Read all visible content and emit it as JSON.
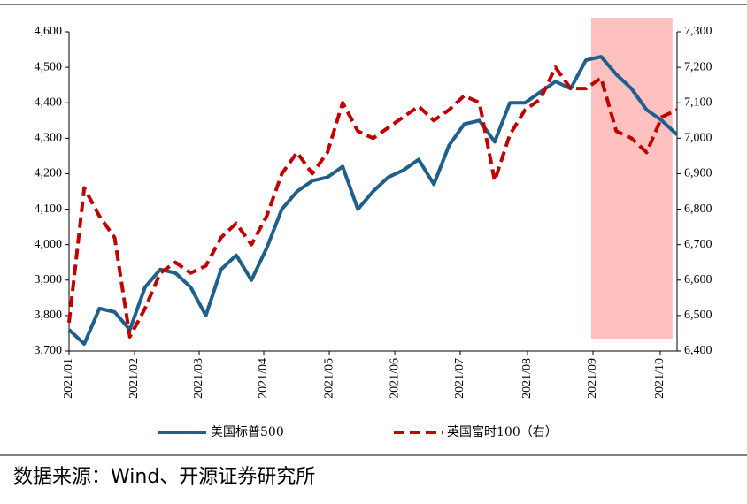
{
  "chart_data": {
    "type": "line",
    "x": [
      0,
      1,
      2,
      3,
      4,
      5,
      6,
      7,
      8,
      9,
      10,
      11,
      12,
      13,
      14,
      15,
      16,
      17,
      18,
      19,
      20,
      21,
      22,
      23,
      24,
      25,
      26,
      27,
      28,
      29,
      30,
      31,
      32,
      33,
      34,
      35,
      36,
      37,
      38,
      39,
      40
    ],
    "xlim": [
      0,
      40
    ],
    "xticks": [
      {
        "value": 0,
        "label": "2021/01"
      },
      {
        "value": 4.31,
        "label": "2021/02"
      },
      {
        "value": 8.56,
        "label": "2021/03"
      },
      {
        "value": 12.81,
        "label": "2021/04"
      },
      {
        "value": 17.12,
        "label": "2021/05"
      },
      {
        "value": 21.43,
        "label": "2021/06"
      },
      {
        "value": 25.73,
        "label": "2021/07"
      },
      {
        "value": 30.16,
        "label": "2021/08"
      },
      {
        "value": 34.47,
        "label": "2021/09"
      },
      {
        "value": 38.89,
        "label": "2021/10"
      }
    ],
    "ylim": [
      3700,
      4600
    ],
    "yticks": [
      {
        "value": 3700,
        "label": "3,700"
      },
      {
        "value": 3800,
        "label": "3,800"
      },
      {
        "value": 3900,
        "label": "3,900"
      },
      {
        "value": 4000,
        "label": "4,000"
      },
      {
        "value": 4100,
        "label": "4,100"
      },
      {
        "value": 4200,
        "label": "4,200"
      },
      {
        "value": 4300,
        "label": "4,300"
      },
      {
        "value": 4400,
        "label": "4,400"
      },
      {
        "value": 4500,
        "label": "4,500"
      },
      {
        "value": 4600,
        "label": "4,600"
      }
    ],
    "y2lim": [
      6400,
      7300
    ],
    "y2ticks": [
      {
        "value": 6400,
        "label": "6,400"
      },
      {
        "value": 6500,
        "label": "6,500"
      },
      {
        "value": 6600,
        "label": "6,600"
      },
      {
        "value": 6700,
        "label": "6,700"
      },
      {
        "value": 6800,
        "label": "6,800"
      },
      {
        "value": 6900,
        "label": "6,900"
      },
      {
        "value": 7000,
        "label": "7,000"
      },
      {
        "value": 7100,
        "label": "7,100"
      },
      {
        "value": 7200,
        "label": "7,200"
      },
      {
        "value": 7300,
        "label": "7,300"
      }
    ],
    "shade": {
      "x": [
        34.35,
        39.7
      ],
      "y": [
        3735,
        4640
      ],
      "color": "#ffc0c0"
    },
    "series": [
      {
        "name": "美国标普500",
        "color": "#1f5f8b",
        "dashed": false,
        "values": [
          3760,
          3720,
          3820,
          3810,
          3760,
          3880,
          3930,
          3920,
          3880,
          3800,
          3930,
          3970,
          3900,
          3990,
          4100,
          4150,
          4180,
          4190,
          4220,
          4100,
          4150,
          4190,
          4210,
          4240,
          4170,
          4280,
          4340,
          4350,
          4290,
          4400,
          4400,
          4430,
          4460,
          4440,
          4520,
          4530,
          4480,
          4440,
          4380,
          4350,
          4310
        ]
      },
      {
        "name": "英国富时100（右）",
        "color": "#c00000",
        "dashed": true,
        "axis": "y2",
        "values": [
          6480,
          6860,
          6780,
          6720,
          6440,
          6520,
          6620,
          6650,
          6620,
          6640,
          6720,
          6760,
          6700,
          6780,
          6900,
          6960,
          6900,
          6960,
          7100,
          7020,
          7000,
          7030,
          7060,
          7090,
          7050,
          7080,
          7120,
          7100,
          6880,
          7010,
          7080,
          7110,
          7200,
          7140,
          7140,
          7170,
          7020,
          7000,
          6960,
          7060,
          7080
        ]
      }
    ],
    "source": "数据来源：Wind、开源证券研究所"
  }
}
